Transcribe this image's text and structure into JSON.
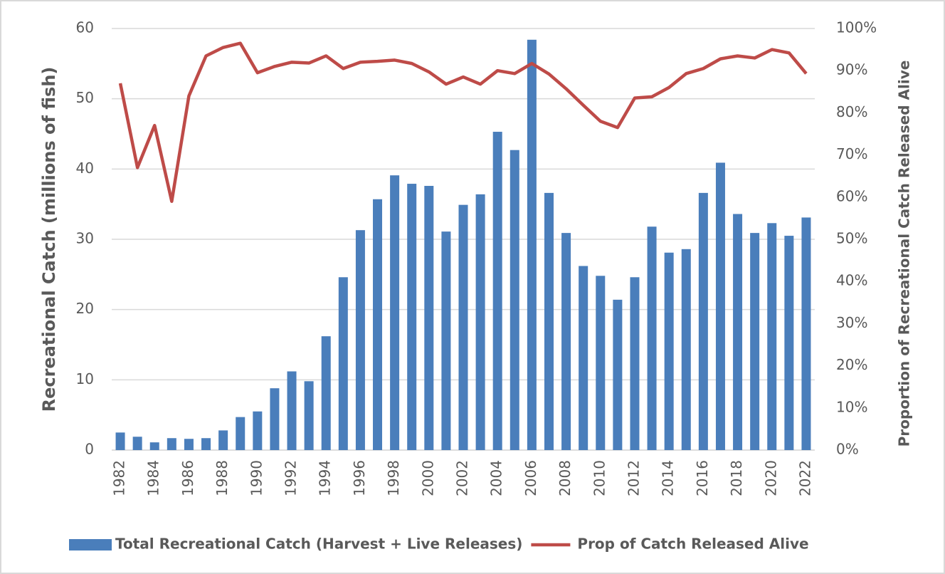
{
  "chart_data": {
    "type": "bar-line",
    "y_title": "Recreational Catch (millions of fish)",
    "y2_title": "Proportion of Recreational Catch Released Alive",
    "categories": [
      "1982",
      null,
      "1984",
      null,
      "1986",
      null,
      "1988",
      null,
      "1990",
      null,
      "1992",
      null,
      "1994",
      null,
      "1996",
      null,
      "1998",
      null,
      "2000",
      null,
      "2002",
      null,
      "2004",
      null,
      "2006",
      null,
      "2008",
      null,
      "2010",
      null,
      "2012",
      null,
      "2014",
      null,
      "2016",
      null,
      "2018",
      null,
      "2020",
      null,
      "2022"
    ],
    "series": [
      {
        "name": "Total Recreational Catch (Harvest + Live Releases)",
        "type": "bar",
        "color": "#4a7ebb",
        "values": [
          2.5,
          1.9,
          1.1,
          1.7,
          1.6,
          1.7,
          2.8,
          4.7,
          5.5,
          8.8,
          11.2,
          9.8,
          16.2,
          24.6,
          31.3,
          35.7,
          39.1,
          37.9,
          37.6,
          31.1,
          34.9,
          36.4,
          45.3,
          42.7,
          58.4,
          36.6,
          30.9,
          26.2,
          24.8,
          21.4,
          24.6,
          31.8,
          28.1,
          28.6,
          36.6,
          40.9,
          33.6,
          30.9,
          32.3,
          30.5,
          33.1
        ]
      },
      {
        "name": "Prop of Catch Released Alive",
        "type": "line",
        "axis": "y2",
        "color": "#be4b48",
        "values": [
          87,
          67,
          77,
          59,
          84,
          93.5,
          95.5,
          96.5,
          89.5,
          91,
          92,
          91.8,
          93.5,
          90.5,
          92,
          92.2,
          92.5,
          91.7,
          89.7,
          86.8,
          88.5,
          86.8,
          90,
          89.3,
          91.7,
          89.2,
          85.7,
          81.8,
          78,
          76.5,
          83.5,
          83.8,
          86,
          89.3,
          90.5,
          92.8,
          93.5,
          93,
          95,
          94.2,
          89.3
        ]
      }
    ],
    "ylim": [
      0,
      60
    ],
    "yticks": [
      0,
      10,
      20,
      30,
      40,
      50,
      60
    ],
    "y2lim": [
      0,
      100
    ],
    "y2ticks": [
      {
        "value": 0,
        "label": "0%"
      },
      {
        "value": 10,
        "label": "10%"
      },
      {
        "value": 20,
        "label": "20%"
      },
      {
        "value": 30,
        "label": "30%"
      },
      {
        "value": 40,
        "label": "40%"
      },
      {
        "value": 50,
        "label": "50%"
      },
      {
        "value": 60,
        "label": "60%"
      },
      {
        "value": 70,
        "label": "70%"
      },
      {
        "value": 80,
        "label": "80%"
      },
      {
        "value": 90,
        "label": "90%"
      },
      {
        "value": 100,
        "label": "100%"
      }
    ],
    "grid": true,
    "legend": "bottom"
  }
}
